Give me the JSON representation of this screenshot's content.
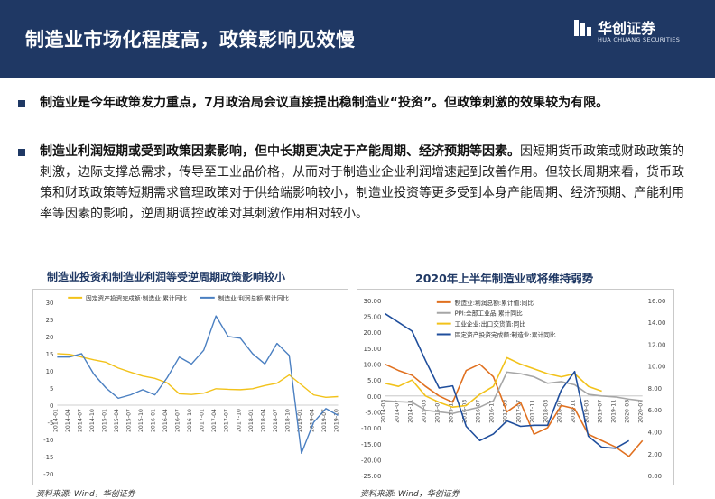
{
  "header": {
    "title": "制造业市场化程度高，政策影响见效慢",
    "logo_name": "华创证券",
    "logo_en": "HUA CHUANG SECURITIES"
  },
  "bullets": [
    {
      "bold": "制造业是今年政策发力重点，7月政治局会议直接提出稳制造业“投资”。但政策刺激的效果较为有限。",
      "text": ""
    },
    {
      "bold": "制造业利润短期或受到政策因素影响，但中长期更决定于产能周期、经济预期等因素。",
      "text": "因短期货币政策或财政政策的刺激，边际支撑总需求，传导至工业品价格，从而对于制造业企业利润增速起到改善作用。但较长周期来看，货币政策和财政政策等短期需求管理政策对于供给端影响较小，制造业投资等更多受到本身产能周期、经济预期、产能利用率等因素的影响，逆周期调控政策对其刺激作用相对较小。"
    }
  ],
  "colors": {
    "header_bg": "#1f3864",
    "series_blue": "#4a7fc1",
    "series_yellow": "#f2c21a",
    "series_orange": "#e0701f",
    "series_gray": "#a6a6a6",
    "series_navy": "#1f4e9c"
  },
  "chart_data": [
    {
      "type": "line",
      "title": "制造业投资和制造业利润等受逆周期政策影响较小",
      "x": [
        "2014-01",
        "2014-04",
        "2014-07",
        "2014-10",
        "2015-01",
        "2015-04",
        "2015-07",
        "2015-10",
        "2016-01",
        "2016-04",
        "2016-07",
        "2016-10",
        "2017-01",
        "2017-04",
        "2017-07",
        "2017-10",
        "2018-01",
        "2018-04",
        "2018-07",
        "2018-10",
        "2019-01",
        "2019-04",
        "2019-07",
        "2019-10"
      ],
      "ylim": [
        -20,
        30
      ],
      "yticks": [
        30,
        25,
        20,
        15,
        10,
        5,
        0,
        -5,
        -10,
        -15,
        -20
      ],
      "legend": "top",
      "series": [
        {
          "name": "固定资产投资完成额:制造业:累计同比",
          "color": "#f2c21a",
          "values": [
            15.0,
            14.8,
            14.0,
            13.2,
            12.5,
            10.8,
            9.6,
            8.5,
            7.8,
            6.5,
            3.3,
            3.1,
            3.5,
            4.8,
            4.6,
            4.5,
            4.8,
            5.7,
            6.4,
            8.8,
            5.9,
            3.0,
            2.3,
            2.5
          ]
        },
        {
          "name": "制造业:利润总额:累计同比",
          "color": "#4a7fc1",
          "values": [
            14.0,
            14.0,
            15.0,
            9.0,
            5.0,
            2.0,
            3.0,
            4.5,
            3.0,
            8.0,
            14.0,
            12.0,
            16.0,
            26.0,
            20.0,
            19.5,
            15.0,
            12.0,
            18.0,
            14.5,
            -14.0,
            -5.0,
            -1.0,
            -3.0
          ]
        }
      ]
    },
    {
      "type": "line",
      "title": "2020年上半年制造业或将维持弱势",
      "x": [
        "2014-03",
        "2014-07",
        "2014-11",
        "2015-03",
        "2015-07",
        "2015-11",
        "2016-03",
        "2016-07",
        "2016-11",
        "2017-03",
        "2017-07",
        "2017-11",
        "2018-03",
        "2018-07",
        "2018-11",
        "2019-03",
        "2019-07",
        "2019-11",
        "2020-03",
        "2020-07"
      ],
      "ylim_left": [
        -25,
        30
      ],
      "ylim_right": [
        0,
        16
      ],
      "yticks_left": [
        30,
        25,
        20,
        15,
        10,
        5,
        0,
        -5,
        -10,
        -15,
        -20,
        -25
      ],
      "yticks_right": [
        16,
        14,
        12,
        10,
        8,
        6,
        4,
        2,
        0
      ],
      "legend": "top-left",
      "series": [
        {
          "name": "制造业:利润总额:累计值:同比",
          "color": "#e0701f",
          "axis": "left",
          "values": [
            10.0,
            8.0,
            6.5,
            3.0,
            0.0,
            -2.0,
            8.0,
            10.0,
            6.0,
            -5.0,
            -2.0,
            -12.0,
            -10.0,
            -3.0,
            -4.0,
            -12.0,
            -14.0,
            -16.0,
            -19.0,
            -14.0
          ]
        },
        {
          "name": "PPI:全部工业品:累计同比",
          "color": "#a6a6a6",
          "axis": "left",
          "values": [
            -1.5,
            -1.8,
            -2.0,
            -4.5,
            -5.0,
            -5.5,
            -4.5,
            -3.5,
            -1.5,
            7.5,
            7.0,
            6.0,
            4.0,
            4.5,
            3.5,
            0.5,
            0.0,
            -0.3,
            -1.0,
            -1.5
          ]
        },
        {
          "name": "工业企业:出口交货值:同比",
          "color": "#f2c21a",
          "axis": "left",
          "values": [
            4.0,
            3.0,
            5.0,
            0.0,
            -2.0,
            -3.5,
            -3.0,
            0.5,
            3.0,
            12.0,
            10.0,
            8.5,
            7.0,
            6.0,
            7.0,
            3.0,
            1.5,
            null,
            null,
            null
          ]
        },
        {
          "name": "固定资产投资完成额:制造业:累计同比",
          "color": "#1f4e9c",
          "axis": "right",
          "values": [
            14.8,
            14.0,
            13.2,
            10.5,
            8.0,
            8.2,
            4.5,
            3.2,
            3.8,
            5.0,
            4.5,
            4.6,
            4.6,
            7.8,
            9.5,
            3.6,
            2.6,
            2.5,
            3.2,
            null
          ]
        }
      ]
    }
  ],
  "sources": [
    "资料来源: Wind，华创证券",
    "资料来源: Wind，华创证券"
  ]
}
